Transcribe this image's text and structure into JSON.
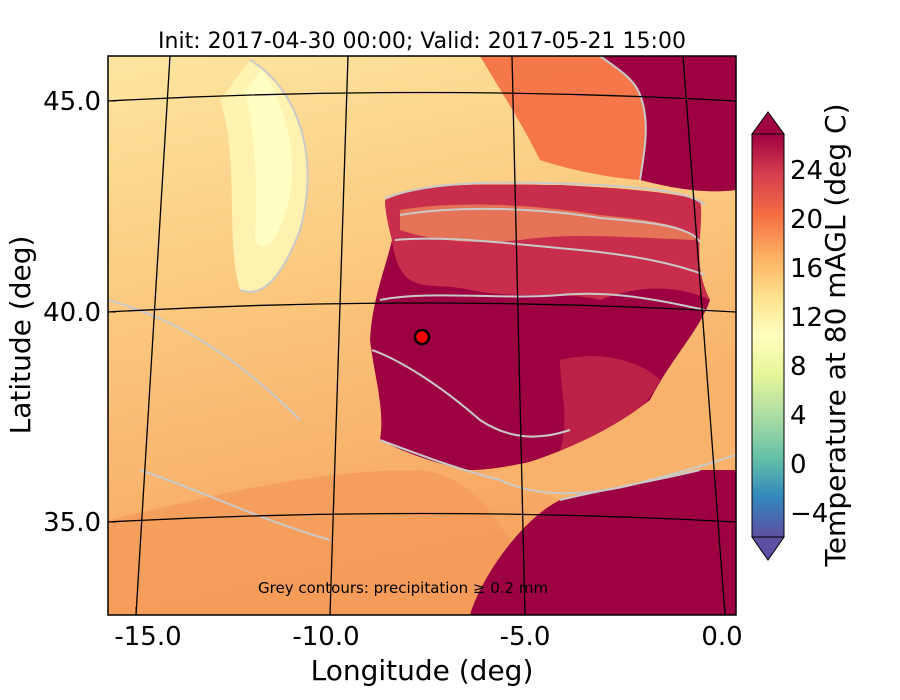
{
  "title": "Init: 2017-04-30 00:00; Valid: 2017-05-21 15:00",
  "xlabel": "Longitude (deg)",
  "ylabel": "Latitude (deg)",
  "x_ticks": [
    "-15.0",
    "-10.0",
    "-5.0",
    "0.0"
  ],
  "y_ticks": [
    "45.0",
    "40.0",
    "35.0"
  ],
  "x_tick_values": [
    -15,
    -10,
    -5,
    0
  ],
  "y_tick_values": [
    45,
    40,
    35
  ],
  "lon_range": [
    -16,
    0
  ],
  "lat_range": [
    32.7,
    46.1
  ],
  "colorbar": {
    "label": "Temperature at 80 mAGL (deg C)",
    "ticks": [
      "24",
      "20",
      "16",
      "12",
      "8",
      "4",
      "0",
      "−4"
    ],
    "tick_values": [
      24,
      20,
      16,
      12,
      8,
      4,
      0,
      -4
    ],
    "range": [
      -6,
      27
    ],
    "extend": "both",
    "colormap": "Spectral_r"
  },
  "annotation": "Grey contours: precipitation ≥ 0.2 mm",
  "marker": {
    "lon": -7.7,
    "lat": 39.3,
    "color": "#ff0000",
    "edge": "#000000"
  },
  "colors": {
    "ocean_north": "#fde29a",
    "ocean_mid": "#fbc57c",
    "ocean_south": "#f8a35e",
    "land_hot": "#9e0142",
    "land_warm": "#d53e4f",
    "coast_cool_band": "#fee99b",
    "precip_contour": "#c9c9c9"
  }
}
